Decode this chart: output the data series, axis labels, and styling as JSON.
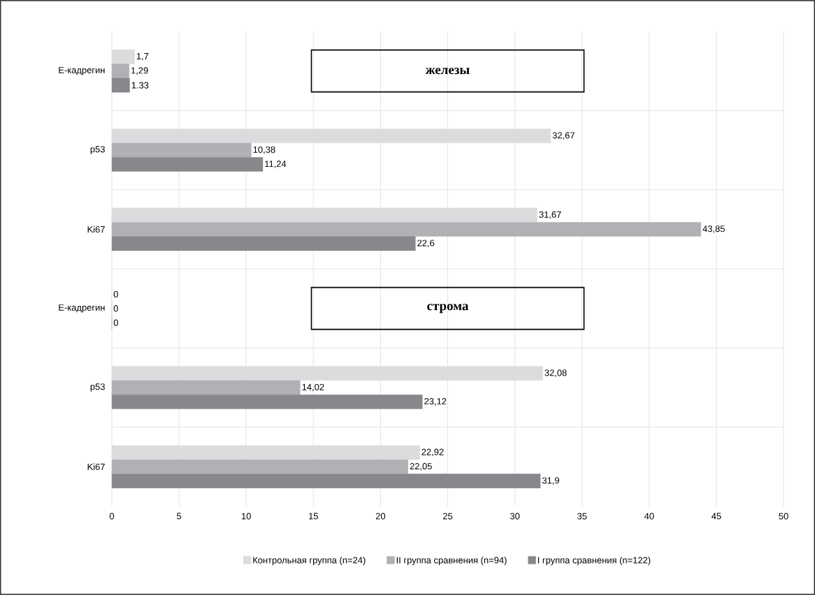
{
  "chart_data": {
    "type": "bar",
    "orientation": "horizontal",
    "categories": [
      "Е-кадрегин",
      "p53",
      "Ki67",
      "Е-кадрегин",
      "p53",
      "Ki67"
    ],
    "series": [
      {
        "name": "Контрольная группа (n=24)",
        "color": "#dcdcde",
        "values": [
          1.7,
          32.67,
          31.67,
          0,
          32.08,
          22.92
        ],
        "value_labels": [
          "1,7",
          "32,67",
          "31,67",
          "0",
          "32,08",
          "22,92"
        ]
      },
      {
        "name": "II группа сравнения (n=94)",
        "color": "#b0b1b4",
        "values": [
          1.29,
          10.38,
          43.85,
          0,
          14.02,
          22.05
        ],
        "value_labels": [
          "1,29",
          "10,38",
          "43,85",
          "0",
          "14,02",
          "22,05"
        ]
      },
      {
        "name": "I группа сравнения (n=122)",
        "color": "#87888c",
        "values": [
          1.33,
          11.24,
          22.6,
          0,
          23.12,
          31.9
        ],
        "value_labels": [
          "1.33",
          "11,24",
          "22,6",
          "0",
          "23,12",
          "31,9"
        ]
      }
    ],
    "annotations": [
      "железы",
      "строма"
    ],
    "xlim": [
      0,
      50
    ],
    "xticks": [
      0,
      5,
      10,
      15,
      20,
      25,
      30,
      35,
      40,
      45,
      50
    ],
    "grid": true,
    "legend": "bottom"
  }
}
